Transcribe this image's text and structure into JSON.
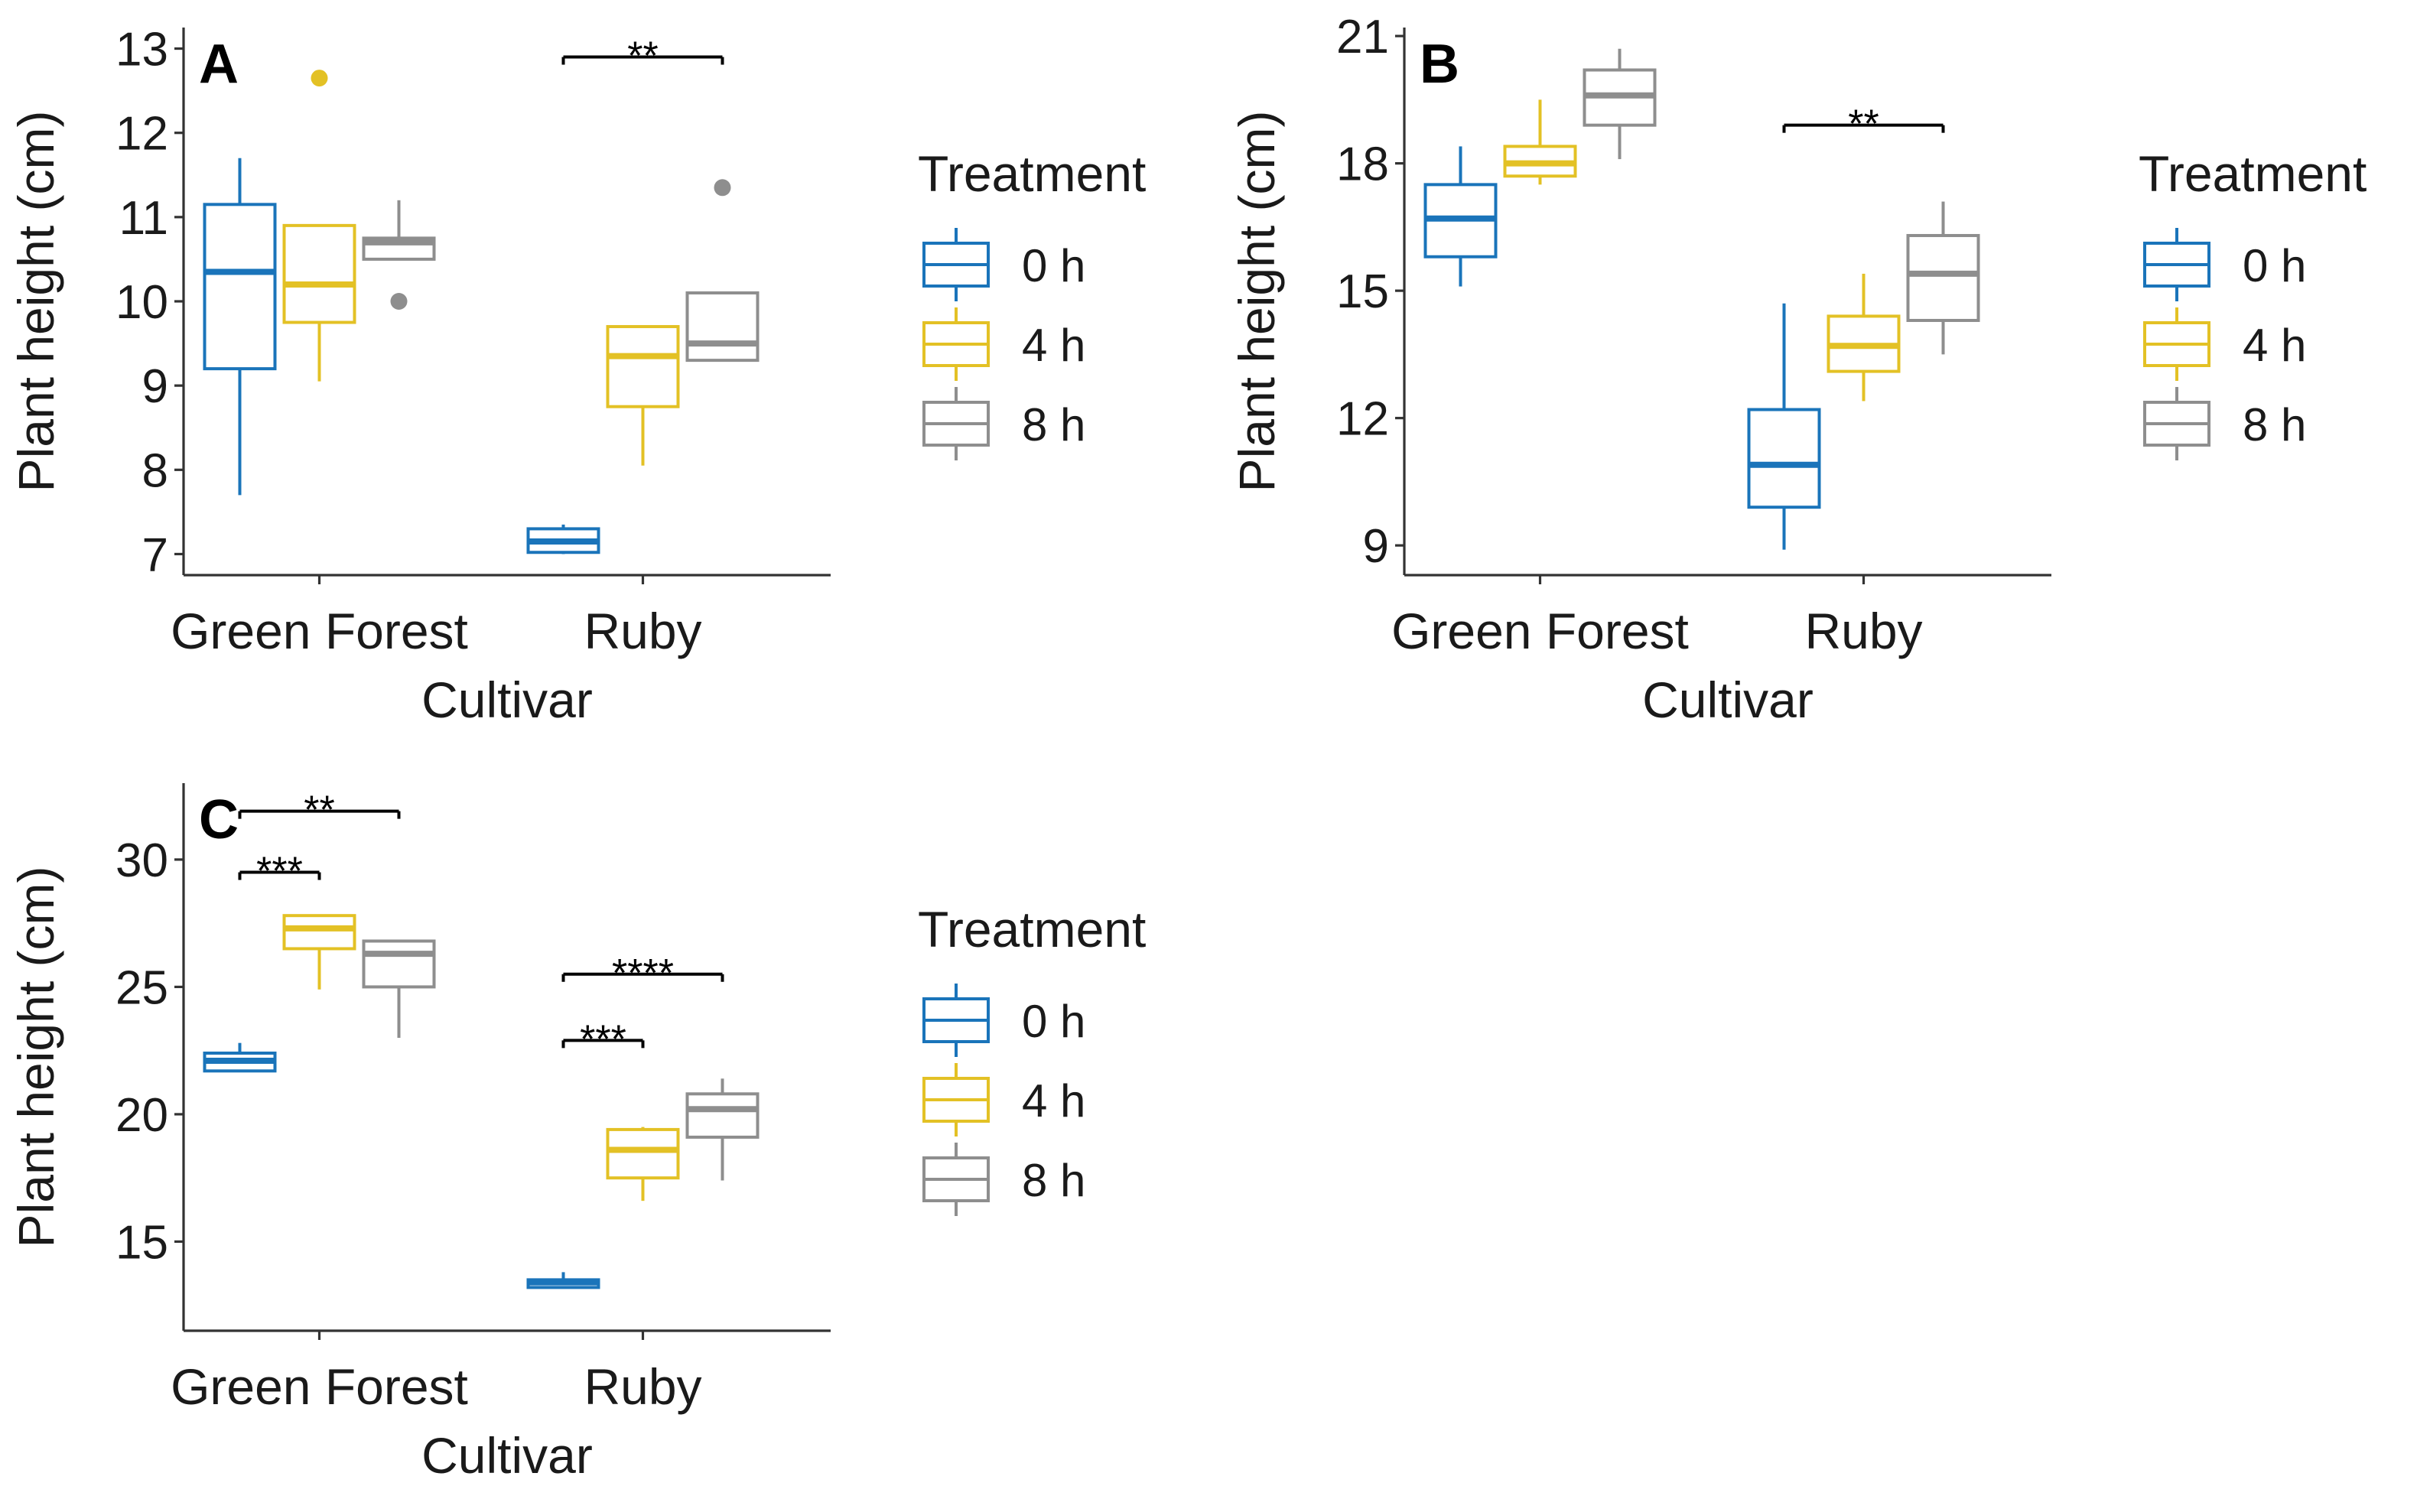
{
  "colors": {
    "treatment_0h": "#1a74ba",
    "treatment_4h": "#e3c125",
    "treatment_8h": "#8e8e8e",
    "axis": "#333333",
    "text": "#1a1a1a"
  },
  "chart_data": [
    {
      "type": "box",
      "panel_label": "A",
      "xlabel": "Cultivar",
      "ylabel": "Plant height (cm)",
      "categories": [
        "Green Forest",
        "Ruby"
      ],
      "ylim": [
        6.75,
        13.25
      ],
      "yticks": [
        7,
        8,
        9,
        10,
        11,
        12,
        13
      ],
      "legend": {
        "title": "Treatment",
        "entries": [
          "0 h",
          "4 h",
          "8 h"
        ]
      },
      "series": [
        {
          "name": "0 h",
          "color_key": "treatment_0h",
          "boxes": [
            {
              "category": "Green Forest",
              "min": 7.7,
              "q1": 9.2,
              "median": 10.35,
              "q3": 11.15,
              "max": 11.7,
              "outliers": []
            },
            {
              "category": "Ruby",
              "min": 7.0,
              "q1": 7.02,
              "median": 7.15,
              "q3": 7.3,
              "max": 7.35,
              "outliers": []
            }
          ]
        },
        {
          "name": "4 h",
          "color_key": "treatment_4h",
          "boxes": [
            {
              "category": "Green Forest",
              "min": 9.05,
              "q1": 9.75,
              "median": 10.2,
              "q3": 10.9,
              "max": 10.9,
              "outliers": [
                12.65
              ]
            },
            {
              "category": "Ruby",
              "min": 8.05,
              "q1": 8.75,
              "median": 9.35,
              "q3": 9.7,
              "max": 9.7,
              "outliers": []
            }
          ]
        },
        {
          "name": "8 h",
          "color_key": "treatment_8h",
          "boxes": [
            {
              "category": "Green Forest",
              "min": 10.5,
              "q1": 10.5,
              "median": 10.7,
              "q3": 10.75,
              "max": 11.2,
              "outliers": [
                10.0
              ]
            },
            {
              "category": "Ruby",
              "min": 9.3,
              "q1": 9.3,
              "median": 9.5,
              "q3": 10.1,
              "max": 10.1,
              "outliers": [
                11.35
              ]
            }
          ]
        }
      ],
      "significance": [
        {
          "category": "Ruby",
          "from": "0 h",
          "to": "8 h",
          "label": "**",
          "y": 12.9
        }
      ]
    },
    {
      "type": "box",
      "panel_label": "B",
      "xlabel": "Cultivar",
      "ylabel": "Plant height (cm)",
      "categories": [
        "Green Forest",
        "Ruby"
      ],
      "ylim": [
        8.3,
        21.2
      ],
      "yticks": [
        9,
        12,
        15,
        18,
        21
      ],
      "legend": {
        "title": "Treatment",
        "entries": [
          "0 h",
          "4 h",
          "8 h"
        ]
      },
      "series": [
        {
          "name": "0 h",
          "color_key": "treatment_0h",
          "boxes": [
            {
              "category": "Green Forest",
              "min": 15.1,
              "q1": 15.8,
              "median": 16.7,
              "q3": 17.5,
              "max": 18.4,
              "outliers": []
            },
            {
              "category": "Ruby",
              "min": 8.9,
              "q1": 9.9,
              "median": 10.9,
              "q3": 12.2,
              "max": 14.7,
              "outliers": []
            }
          ]
        },
        {
          "name": "4 h",
          "color_key": "treatment_4h",
          "boxes": [
            {
              "category": "Green Forest",
              "min": 17.5,
              "q1": 17.7,
              "median": 18.0,
              "q3": 18.4,
              "max": 19.5,
              "outliers": []
            },
            {
              "category": "Ruby",
              "min": 12.4,
              "q1": 13.1,
              "median": 13.7,
              "q3": 14.4,
              "max": 15.4,
              "outliers": []
            }
          ]
        },
        {
          "name": "8 h",
          "color_key": "treatment_8h",
          "boxes": [
            {
              "category": "Green Forest",
              "min": 18.1,
              "q1": 18.9,
              "median": 19.6,
              "q3": 20.2,
              "max": 20.7,
              "outliers": []
            },
            {
              "category": "Ruby",
              "min": 13.5,
              "q1": 14.3,
              "median": 15.4,
              "q3": 16.3,
              "max": 17.1,
              "outliers": []
            }
          ]
        }
      ],
      "significance": [
        {
          "category": "Ruby",
          "from": "0 h",
          "to": "8 h",
          "label": "**",
          "y": 18.9
        }
      ]
    },
    {
      "type": "box",
      "panel_label": "C",
      "xlabel": "Cultivar",
      "ylabel": "Plant height (cm)",
      "categories": [
        "Green Forest",
        "Ruby"
      ],
      "ylim": [
        11.5,
        33.0
      ],
      "yticks": [
        15,
        20,
        25,
        30
      ],
      "legend": {
        "title": "Treatment",
        "entries": [
          "0 h",
          "4 h",
          "8 h"
        ]
      },
      "series": [
        {
          "name": "0 h",
          "color_key": "treatment_0h",
          "boxes": [
            {
              "category": "Green Forest",
              "min": 21.7,
              "q1": 21.7,
              "median": 22.1,
              "q3": 22.4,
              "max": 22.8,
              "outliers": []
            },
            {
              "category": "Ruby",
              "min": 13.2,
              "q1": 13.2,
              "median": 13.4,
              "q3": 13.5,
              "max": 13.8,
              "outliers": []
            }
          ]
        },
        {
          "name": "4 h",
          "color_key": "treatment_4h",
          "boxes": [
            {
              "category": "Green Forest",
              "min": 24.9,
              "q1": 26.5,
              "median": 27.3,
              "q3": 27.8,
              "max": 27.8,
              "outliers": []
            },
            {
              "category": "Ruby",
              "min": 16.6,
              "q1": 17.5,
              "median": 18.6,
              "q3": 19.4,
              "max": 19.5,
              "outliers": []
            }
          ]
        },
        {
          "name": "8 h",
          "color_key": "treatment_8h",
          "boxes": [
            {
              "category": "Green Forest",
              "min": 23.0,
              "q1": 25.0,
              "median": 26.3,
              "q3": 26.8,
              "max": 26.8,
              "outliers": []
            },
            {
              "category": "Ruby",
              "min": 17.4,
              "q1": 19.1,
              "median": 20.2,
              "q3": 20.8,
              "max": 21.4,
              "outliers": []
            }
          ]
        }
      ],
      "significance": [
        {
          "category": "Green Forest",
          "from": "0 h",
          "to": "8 h",
          "label": "**",
          "y": 31.9
        },
        {
          "category": "Green Forest",
          "from": "0 h",
          "to": "4 h",
          "label": "***",
          "y": 29.5
        },
        {
          "category": "Ruby",
          "from": "0 h",
          "to": "8 h",
          "label": "****",
          "y": 25.5
        },
        {
          "category": "Ruby",
          "from": "0 h",
          "to": "4 h",
          "label": "***",
          "y": 22.9
        }
      ]
    }
  ]
}
